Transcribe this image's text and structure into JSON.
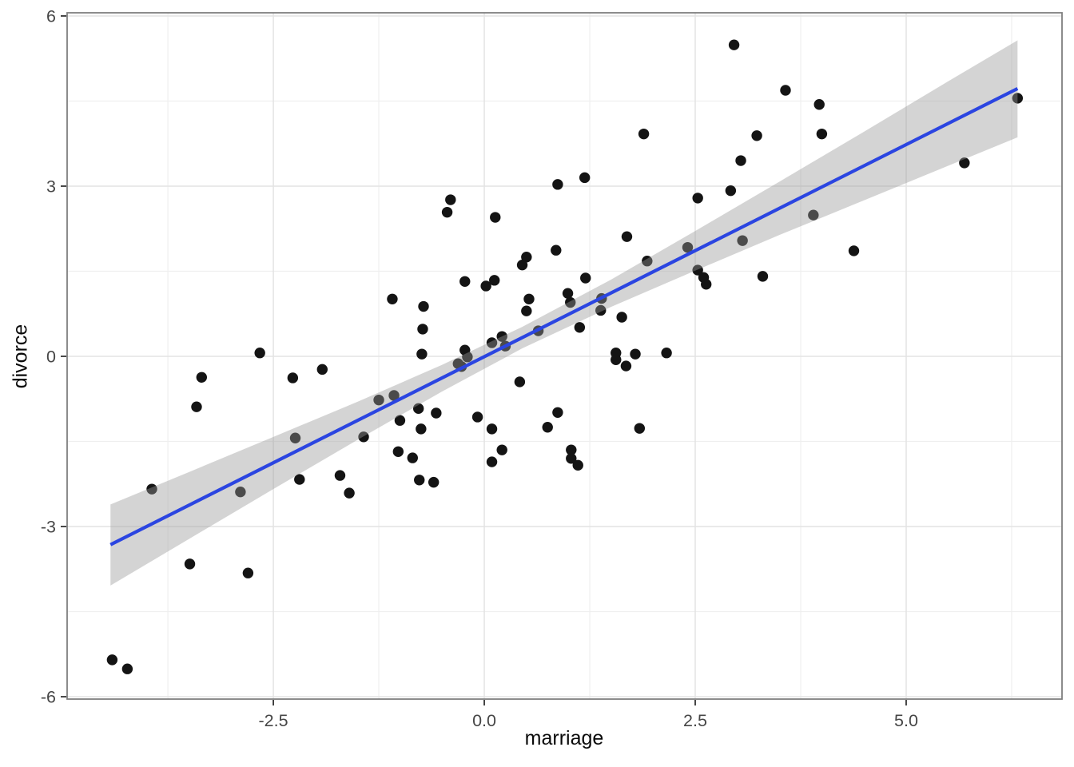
{
  "figure": {
    "background": "#ffffff",
    "colors": {
      "point": "#141414",
      "smooth_line": "#2b45e1",
      "ci_fill": "#999999",
      "ci_opacity": 0.42,
      "panel_border": "#7f7f7f",
      "grid_major": "#e3e3e3",
      "grid_minor": "#efefef",
      "tick_mark": "#333333",
      "tick_label": "#464646",
      "axis_title": "#0a0a0a"
    }
  },
  "chart_data": {
    "type": "scatter",
    "title": "",
    "xlabel": "marriage",
    "ylabel": "divorce",
    "xlim": [
      -4.944,
      6.847
    ],
    "ylim": [
      -6.042,
      6.056
    ],
    "grid": "major+minor",
    "legend": "none",
    "x_axis": {
      "major_ticks": [
        -2.5,
        0,
        2.5,
        5
      ],
      "tick_labels": [
        "-2.5",
        "0.0",
        "2.5",
        "5.0"
      ],
      "minor_ticks": [
        -3.75,
        -1.25,
        1.25,
        3.75,
        6.25
      ]
    },
    "y_axis": {
      "major_ticks": [
        -6,
        -3,
        0,
        3,
        6
      ],
      "tick_labels": [
        "-6",
        "-3",
        "0",
        "3",
        "6"
      ],
      "minor_ticks": [
        -4.5,
        -1.5,
        1.5,
        4.5
      ]
    },
    "points": [
      [
        -4.41,
        -5.35
      ],
      [
        -4.23,
        -5.51
      ],
      [
        -3.49,
        -3.66
      ],
      [
        -2.8,
        -3.82
      ],
      [
        2.96,
        5.49
      ],
      [
        1.89,
        3.92
      ],
      [
        3.23,
        3.89
      ],
      [
        3.04,
        3.45
      ],
      [
        1.19,
        3.15
      ],
      [
        0.87,
        3.03
      ],
      [
        2.92,
        2.92
      ],
      [
        -0.4,
        2.76
      ],
      [
        -0.44,
        2.54
      ],
      [
        0.13,
        2.45
      ],
      [
        2.53,
        2.79
      ],
      [
        1.69,
        2.11
      ],
      [
        2.41,
        1.92
      ],
      [
        3.06,
        2.04
      ],
      [
        0.85,
        1.87
      ],
      [
        1.93,
        1.68
      ],
      [
        0.5,
        1.75
      ],
      [
        0.45,
        1.61
      ],
      [
        3.57,
        4.69
      ],
      [
        3.97,
        4.44
      ],
      [
        4.0,
        3.92
      ],
      [
        6.32,
        4.55
      ],
      [
        5.69,
        3.41
      ],
      [
        3.9,
        2.49
      ],
      [
        4.38,
        1.86
      ],
      [
        -2.66,
        0.06
      ],
      [
        -1.09,
        1.01
      ],
      [
        -1.92,
        -0.23
      ],
      [
        -2.27,
        -0.38
      ],
      [
        -3.35,
        -0.37
      ],
      [
        -3.41,
        -0.89
      ],
      [
        -1.25,
        -0.77
      ],
      [
        -1.07,
        -0.69
      ],
      [
        -1.0,
        -1.13
      ],
      [
        -2.24,
        -1.44
      ],
      [
        -1.43,
        -1.42
      ],
      [
        -1.02,
        -1.68
      ],
      [
        -0.85,
        -1.79
      ],
      [
        -1.71,
        -2.1
      ],
      [
        -2.19,
        -2.17
      ],
      [
        -1.6,
        -2.41
      ],
      [
        -3.94,
        -2.34
      ],
      [
        -2.89,
        -2.39
      ],
      [
        -0.72,
        0.88
      ],
      [
        -0.73,
        0.48
      ],
      [
        -0.74,
        0.04
      ],
      [
        -0.78,
        -0.92
      ],
      [
        -0.57,
        -1.0
      ],
      [
        -0.75,
        -1.28
      ],
      [
        -0.77,
        -2.18
      ],
      [
        -0.6,
        -2.22
      ],
      [
        1.2,
        1.38
      ],
      [
        2.53,
        1.52
      ],
      [
        2.6,
        1.39
      ],
      [
        2.63,
        1.27
      ],
      [
        3.3,
        1.41
      ],
      [
        -0.23,
        1.32
      ],
      [
        0.02,
        1.24
      ],
      [
        0.12,
        1.34
      ],
      [
        0.53,
        1.01
      ],
      [
        0.5,
        0.8
      ],
      [
        0.99,
        1.11
      ],
      [
        1.02,
        0.95
      ],
      [
        1.39,
        1.02
      ],
      [
        1.38,
        0.81
      ],
      [
        1.63,
        0.69
      ],
      [
        1.13,
        0.51
      ],
      [
        0.64,
        0.45
      ],
      [
        0.21,
        0.35
      ],
      [
        0.09,
        0.24
      ],
      [
        0.25,
        0.18
      ],
      [
        -0.23,
        0.11
      ],
      [
        -0.2,
        -0.01
      ],
      [
        -0.31,
        -0.13
      ],
      [
        -0.27,
        -0.18
      ],
      [
        1.56,
        0.06
      ],
      [
        1.56,
        -0.06
      ],
      [
        1.68,
        -0.17
      ],
      [
        1.79,
        0.04
      ],
      [
        2.16,
        0.06
      ],
      [
        0.42,
        -0.45
      ],
      [
        -0.08,
        -1.07
      ],
      [
        0.09,
        -1.28
      ],
      [
        0.87,
        -0.99
      ],
      [
        0.75,
        -1.25
      ],
      [
        1.84,
        -1.27
      ],
      [
        0.21,
        -1.65
      ],
      [
        0.09,
        -1.86
      ],
      [
        1.03,
        -1.65
      ],
      [
        1.03,
        -1.8
      ],
      [
        1.11,
        -1.92
      ]
    ],
    "point_style": {
      "radius": 6.7
    },
    "smooth": {
      "method": "linear",
      "line_x": [
        -4.43,
        6.32
      ],
      "line_y": [
        -3.32,
        4.72
      ],
      "ci_x": [
        -4.43,
        -3.5,
        -2.5,
        -1.5,
        -0.5,
        0.45,
        1.5,
        2.5,
        3.5,
        4.5,
        5.5,
        6.32
      ],
      "ci_upper": [
        -2.61,
        -2.04,
        -1.42,
        -0.8,
        -0.15,
        0.52,
        1.35,
        2.21,
        3.08,
        3.96,
        4.85,
        5.57
      ],
      "ci_lower": [
        -4.04,
        -3.22,
        -2.34,
        -1.47,
        -0.62,
        0.14,
        0.87,
        1.51,
        2.14,
        2.75,
        3.36,
        3.86
      ]
    }
  }
}
